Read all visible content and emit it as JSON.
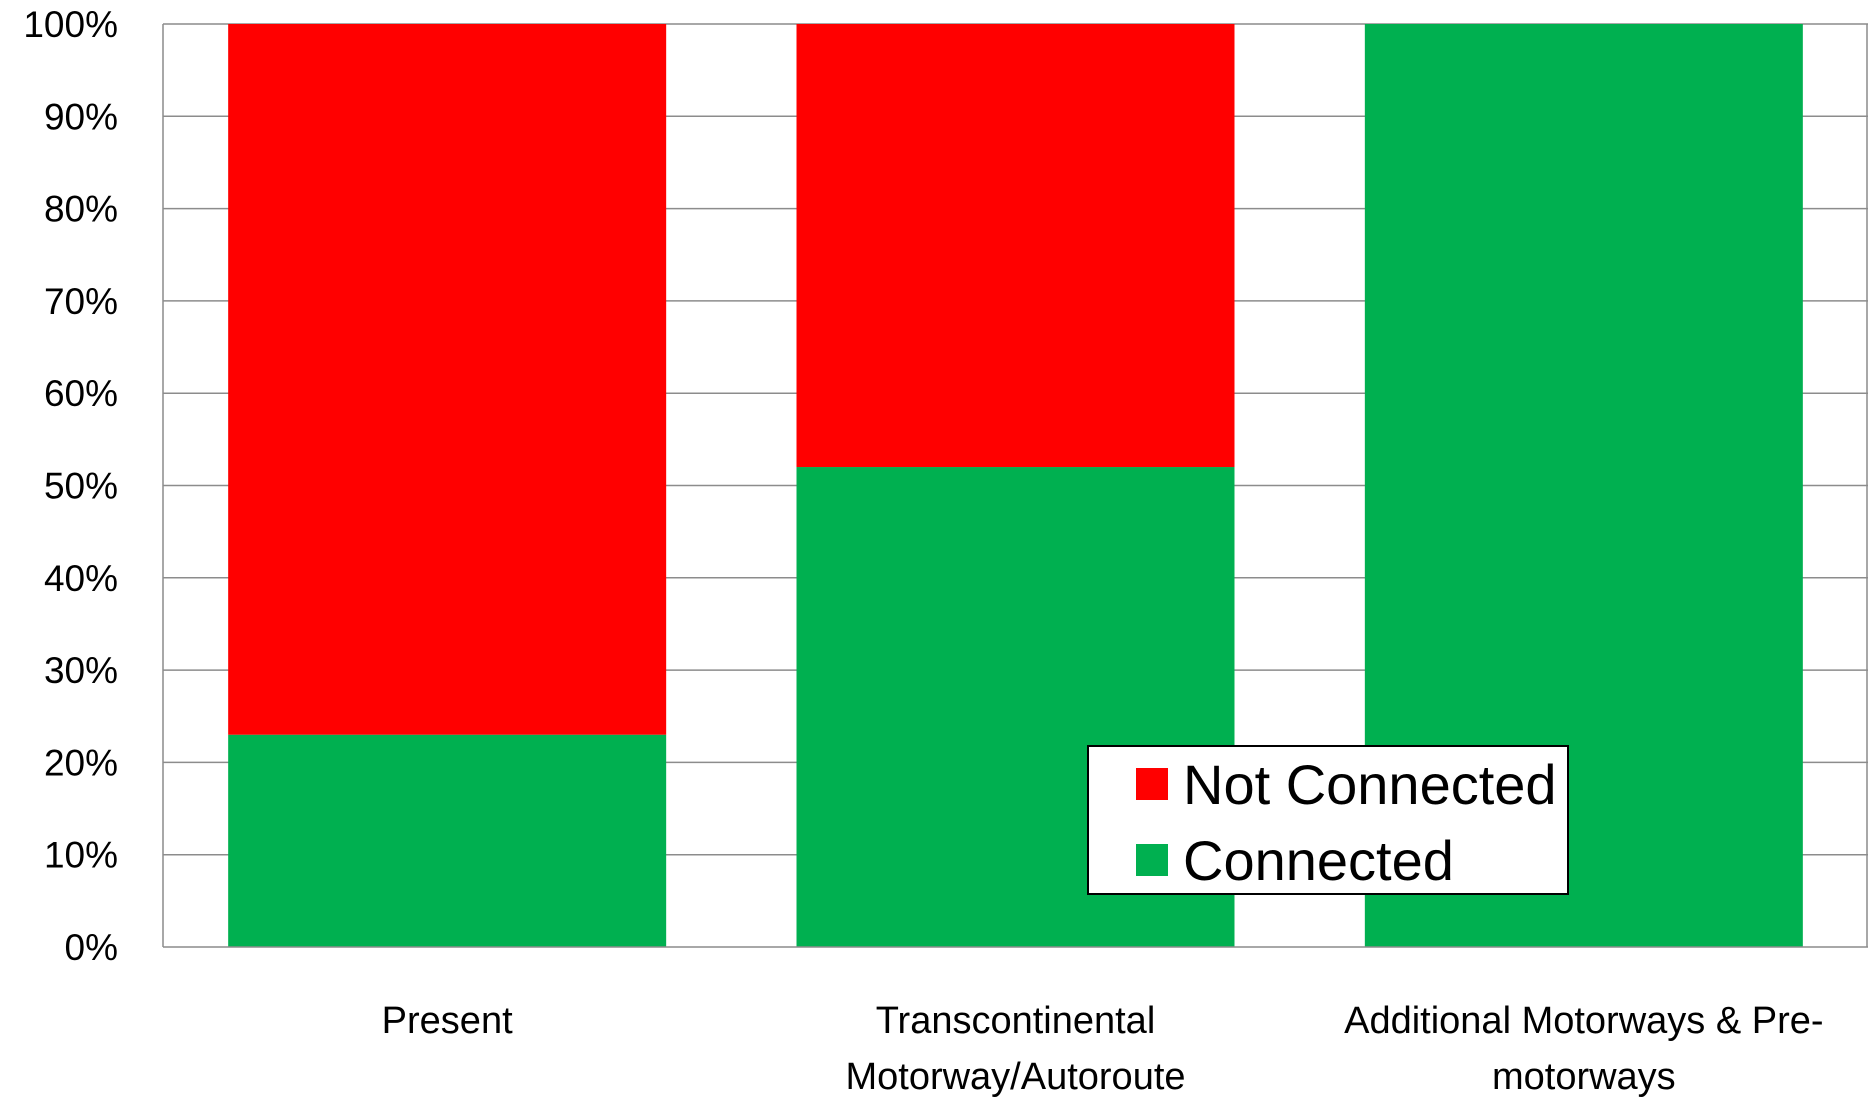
{
  "chart_data": {
    "type": "bar",
    "stacked": true,
    "normalized": true,
    "categories": [
      [
        "Present"
      ],
      [
        "Transcontinental",
        "Motorway/Autoroute"
      ],
      [
        "Additional Motorways & Pre-",
        "motorways"
      ]
    ],
    "series": [
      {
        "name": "Connected",
        "color": "#00b050",
        "values": [
          23,
          52,
          100
        ]
      },
      {
        "name": "Not Connected",
        "color": "#ff0000",
        "values": [
          77,
          48,
          0
        ]
      }
    ],
    "y_ticks": [
      "0%",
      "10%",
      "20%",
      "30%",
      "40%",
      "50%",
      "60%",
      "70%",
      "80%",
      "90%",
      "100%"
    ],
    "ylim": [
      0,
      100
    ],
    "grid": true,
    "legend": {
      "placement": "bottom-center-inside",
      "entries": [
        "Not Connected",
        "Connected"
      ]
    },
    "title": "",
    "xlabel": "",
    "ylabel": ""
  }
}
